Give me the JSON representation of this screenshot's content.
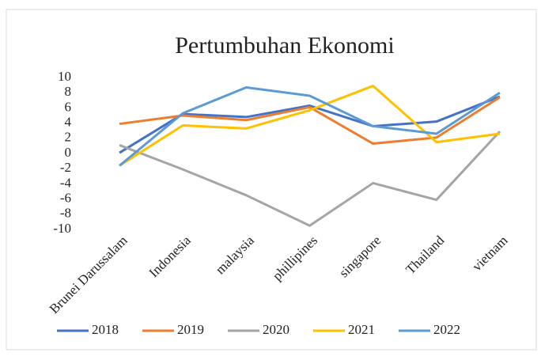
{
  "chart_data": {
    "type": "line",
    "title": "Pertumbuhan Ekonomi",
    "categories": [
      "Brunei Darussalam",
      "Indonesia",
      "malaysia",
      "phillipines",
      "singapore",
      "Thailand",
      "vietnam"
    ],
    "series": [
      {
        "name": "2018",
        "color": "#4472c4",
        "values": [
          0.1,
          5.2,
          4.8,
          6.3,
          3.6,
          4.2,
          7.5
        ]
      },
      {
        "name": "2019",
        "color": "#ed7d31",
        "values": [
          3.9,
          5.0,
          4.4,
          6.1,
          1.3,
          2.1,
          7.4
        ]
      },
      {
        "name": "2020",
        "color": "#a5a5a5",
        "values": [
          1.1,
          -2.1,
          -5.5,
          -9.5,
          -3.9,
          -6.1,
          2.9
        ]
      },
      {
        "name": "2021",
        "color": "#ffc000",
        "values": [
          -1.6,
          3.7,
          3.3,
          5.7,
          8.9,
          1.5,
          2.6
        ]
      },
      {
        "name": "2022",
        "color": "#5b9bd5",
        "values": [
          -1.6,
          5.3,
          8.7,
          7.6,
          3.6,
          2.6,
          8.0
        ]
      }
    ],
    "ylim": [
      -10,
      10
    ],
    "yticks": [
      -10,
      -8,
      -6,
      -4,
      -2,
      0,
      2,
      4,
      6,
      8,
      10
    ],
    "grid": false,
    "legend": "bottom"
  }
}
